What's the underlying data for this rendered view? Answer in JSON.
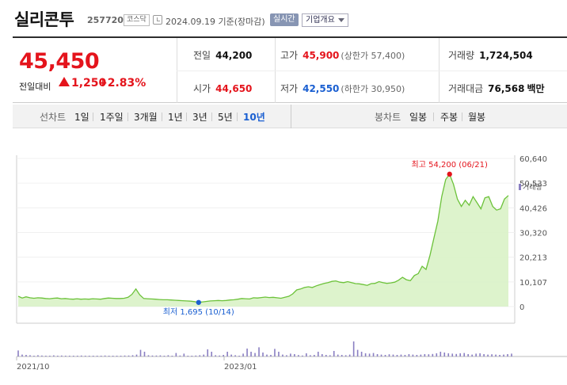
{
  "header": {
    "title": "실리콘투",
    "code": "257720",
    "market": "코스닥",
    "date_text": "2024.09.19 기준(장마감)",
    "realtime_label": "실시간",
    "overview_label": "기업개요"
  },
  "quote": {
    "price": "45,450",
    "change_label": "전일대비",
    "change": "1,250",
    "change_pct": "+2.83%",
    "prev_close_label": "전일",
    "prev_close": "44,200",
    "open_label": "시가",
    "open": "44,650",
    "high_label": "고가",
    "high": "45,900",
    "upper_limit": "(상한가 57,400)",
    "low_label": "저가",
    "low": "42,550",
    "lower_limit": "(하한가 30,950)",
    "volume_label": "거래량",
    "volume": "1,724,504",
    "value_label": "거래대금",
    "value": "76,568",
    "value_unit": "백만",
    "colors": {
      "up": "#e4141c",
      "down": "#1a5fd1"
    }
  },
  "toolbar": {
    "line_chart_label": "선차트",
    "periods": [
      "1일",
      "1주일",
      "3개월",
      "1년",
      "3년",
      "5년",
      "10년"
    ],
    "selected_period": "10년",
    "candle_chart_label": "봉차트",
    "candles": [
      "일봉",
      "주봉",
      "월봉"
    ]
  },
  "chart_data": {
    "type": "area",
    "y_ticks": [
      "60,640",
      "50,533",
      "40,426",
      "30,320",
      "20,213",
      "10,107",
      "0"
    ],
    "ylim": [
      0,
      60640
    ],
    "x_labels": [
      "2021/10",
      "2023/01"
    ],
    "high_annotation": "최고 54,200 (06/21)",
    "low_annotation": "최저 1,695 (10/14)",
    "volume_legend": "거래량",
    "colors": {
      "line": "#6cc23a",
      "fill": "#d9f2c6",
      "high_dot": "#e4141c",
      "low_dot": "#1a5fd1",
      "volume": "#8a7fc2"
    },
    "price_series": [
      4200,
      3500,
      4000,
      3600,
      3400,
      3600,
      3500,
      3300,
      3200,
      3400,
      3500,
      3200,
      3300,
      3100,
      3000,
      3200,
      3000,
      3100,
      3000,
      3200,
      3100,
      3000,
      3300,
      3500,
      3400,
      3300,
      3300,
      3400,
      3800,
      5000,
      7200,
      4800,
      3300,
      3200,
      3100,
      3000,
      2900,
      2800,
      2800,
      2700,
      2600,
      2500,
      2400,
      2300,
      2200,
      2000,
      1695,
      1900,
      2100,
      2300,
      2400,
      2500,
      2400,
      2500,
      2700,
      2800,
      3000,
      3300,
      3200,
      3100,
      3600,
      3500,
      3700,
      3900,
      3700,
      3800,
      3600,
      3400,
      3800,
      4200,
      5200,
      6800,
      7200,
      7800,
      8100,
      7800,
      8500,
      9000,
      9500,
      9800,
      10300,
      10500,
      10000,
      9800,
      10200,
      9800,
      9400,
      9300,
      9000,
      8700,
      9400,
      9500,
      10200,
      9800,
      9500,
      9700,
      10000,
      10800,
      12000,
      11000,
      10600,
      12700,
      13500,
      16500,
      15200,
      21000,
      28000,
      35000,
      45000,
      52000,
      54200,
      50000,
      44000,
      41000,
      43500,
      41500,
      45000,
      42500,
      40000,
      44500,
      45000,
      41000,
      39500,
      40000,
      44000,
      45450
    ],
    "volume_series": [
      0.38,
      0.12,
      0.1,
      0.08,
      0.05,
      0.08,
      0.06,
      0.05,
      0.05,
      0.07,
      0.04,
      0.06,
      0.05,
      0.05,
      0.04,
      0.05,
      0.06,
      0.04,
      0.05,
      0.05,
      0.04,
      0.05,
      0.06,
      0.05,
      0.05,
      0.05,
      0.05,
      0.06,
      0.06,
      0.08,
      0.12,
      0.42,
      0.3,
      0.08,
      0.06,
      0.06,
      0.07,
      0.05,
      0.08,
      0.05,
      0.22,
      0.06,
      0.18,
      0.05,
      0.04,
      0.06,
      0.08,
      0.12,
      0.45,
      0.3,
      0.08,
      0.06,
      0.1,
      0.3,
      0.12,
      0.08,
      0.05,
      0.18,
      0.5,
      0.3,
      0.22,
      0.58,
      0.25,
      0.12,
      0.1,
      0.48,
      0.3,
      0.12,
      0.08,
      0.18,
      0.15,
      0.09,
      0.06,
      0.2,
      0.08,
      0.1,
      0.3,
      0.15,
      0.1,
      0.08,
      0.35,
      0.12,
      0.1,
      0.08,
      0.12,
      0.95,
      0.42,
      0.3,
      0.2,
      0.18,
      0.22,
      0.15,
      0.12,
      0.1,
      0.14,
      0.12,
      0.1,
      0.12,
      0.1,
      0.15,
      0.12,
      0.1,
      0.12,
      0.15,
      0.14,
      0.16,
      0.2,
      0.3,
      0.25,
      0.2,
      0.18,
      0.16,
      0.2,
      0.22,
      0.15,
      0.12,
      0.18,
      0.2,
      0.15,
      0.12,
      0.14,
      0.12,
      0.1,
      0.12,
      0.15,
      0.18
    ]
  }
}
